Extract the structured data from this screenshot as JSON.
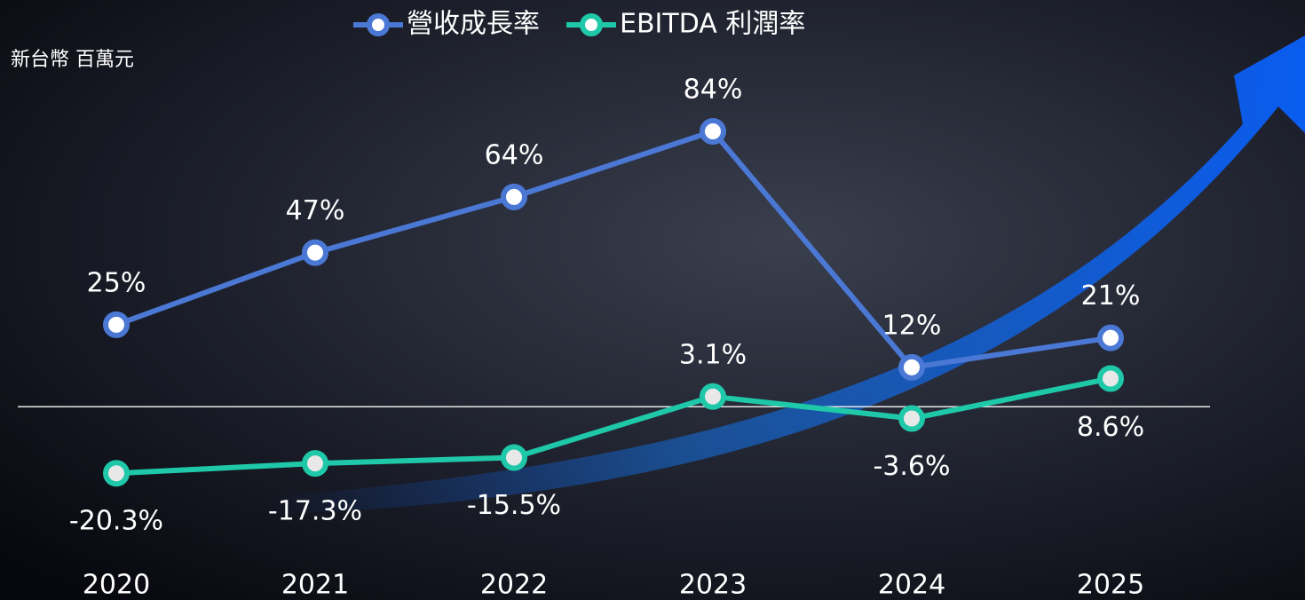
{
  "chart_data": {
    "type": "line",
    "y_label": "新台幣 百萬元",
    "categories": [
      "2020",
      "2021",
      "2022",
      "2023",
      "2024",
      "2025"
    ],
    "series": [
      {
        "name": "營收成長率",
        "color": "#4a78d4",
        "values": [
          25,
          47,
          64,
          84,
          12,
          21
        ],
        "value_labels": [
          "25%",
          "47%",
          "64%",
          "84%",
          "12%",
          "21%"
        ]
      },
      {
        "name": "EBITDA 利潤率",
        "color": "#1ec8a8",
        "values": [
          -20.3,
          -17.3,
          -15.5,
          3.1,
          -3.6,
          8.6
        ],
        "value_labels": [
          "-20.3%",
          "-17.3%",
          "-15.5%",
          "3.1%",
          "-3.6%",
          "8.6%"
        ]
      }
    ],
    "ylim": [
      -40,
      120
    ]
  }
}
